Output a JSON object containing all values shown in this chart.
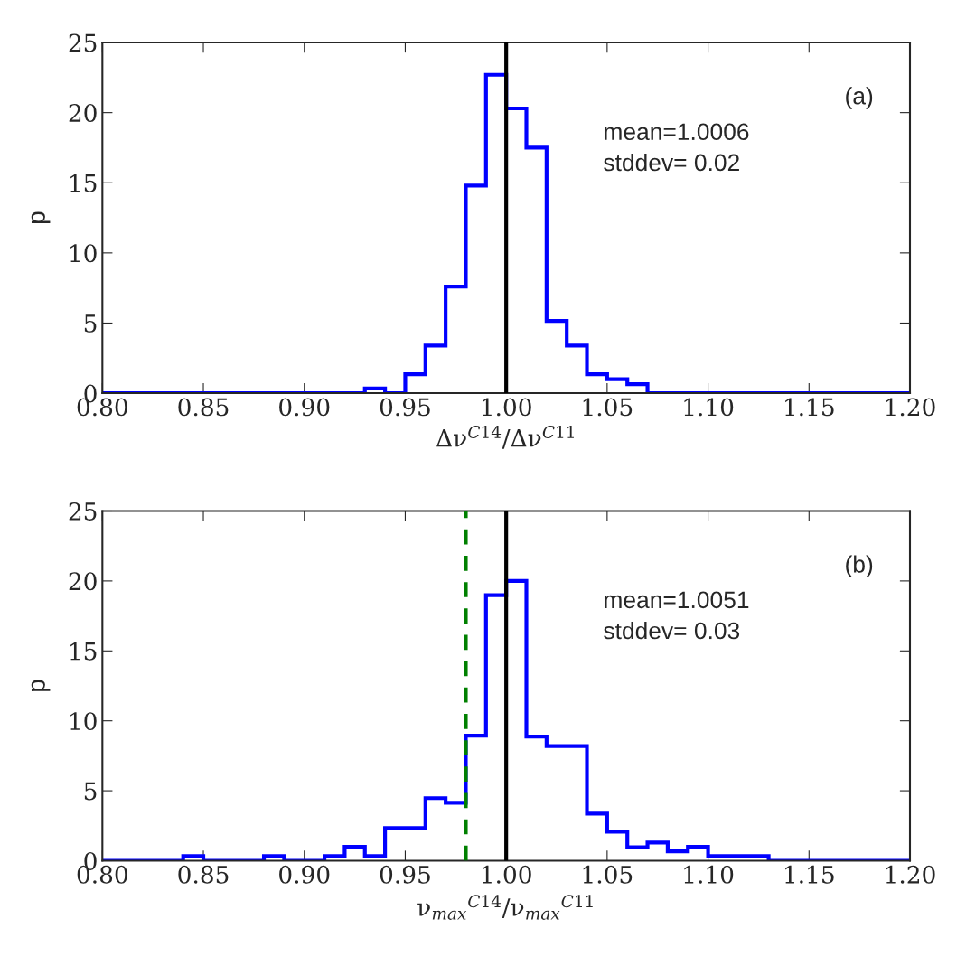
{
  "chart_data": [
    {
      "type": "histogram",
      "xlabel": "Δν$^{C14}$/Δν$^{C11}$",
      "ylabel": "p",
      "annotations": [
        "(a)",
        "mean=1.0006\nstddev= 0.02"
      ],
      "bins": [
        0.8,
        0.81,
        0.82,
        0.83,
        0.84,
        0.85,
        0.86,
        0.87,
        0.88,
        0.89,
        0.9,
        0.91,
        0.92,
        0.93,
        0.94,
        0.95,
        0.96,
        0.97,
        0.98,
        0.99,
        1.0,
        1.01,
        1.02,
        1.03,
        1.04,
        1.05,
        1.06,
        1.07,
        1.08,
        1.09,
        1.1,
        1.11,
        1.12,
        1.13,
        1.14,
        1.15,
        1.16,
        1.17,
        1.18,
        1.19,
        1.2
      ],
      "series": [
        {
          "color": "#0000ff",
          "values": [
            0,
            0,
            0,
            0,
            0,
            0,
            0,
            0,
            0,
            0,
            0,
            0,
            0,
            0.34,
            0,
            1.35,
            3.4,
            7.6,
            14.8,
            22.7,
            20.3,
            17.5,
            5.15,
            3.4,
            1.35,
            1.0,
            0.64,
            0,
            0,
            0,
            0,
            0,
            0,
            0,
            0,
            0,
            0,
            0,
            0,
            0
          ]
        }
      ],
      "ref_lines": [
        {
          "axis": "x",
          "value": 1.0,
          "color": "#000000",
          "line_style": "solid"
        }
      ],
      "xlim": [
        0.8,
        1.2
      ],
      "xticks": [
        {
          "value": 0.8,
          "label": "0.80"
        },
        {
          "value": 0.85,
          "label": "0.85"
        },
        {
          "value": 0.9,
          "label": "0.90"
        },
        {
          "value": 0.95,
          "label": "0.95"
        },
        {
          "value": 1.0,
          "label": "1.00"
        },
        {
          "value": 1.05,
          "label": "1.05"
        },
        {
          "value": 1.1,
          "label": "1.10"
        },
        {
          "value": 1.15,
          "label": "1.15"
        },
        {
          "value": 1.2,
          "label": "1.20"
        }
      ],
      "ylim": [
        0,
        25
      ],
      "yticks": [
        0,
        5,
        10,
        15,
        20,
        25
      ],
      "grid": false,
      "legend": false
    },
    {
      "type": "histogram",
      "xlabel": "ν$_{max}$$^{C14}$/ν$_{max}$$^{C11}$",
      "ylabel": "p",
      "annotations": [
        "(b)",
        "mean=1.0051\nstddev= 0.03"
      ],
      "bins": [
        0.8,
        0.81,
        0.82,
        0.83,
        0.84,
        0.85,
        0.86,
        0.87,
        0.88,
        0.89,
        0.9,
        0.91,
        0.92,
        0.93,
        0.94,
        0.95,
        0.96,
        0.97,
        0.98,
        0.99,
        1.0,
        1.01,
        1.02,
        1.03,
        1.04,
        1.05,
        1.06,
        1.07,
        1.08,
        1.09,
        1.1,
        1.11,
        1.12,
        1.13,
        1.14,
        1.15,
        1.16,
        1.17,
        1.18,
        1.19,
        1.2
      ],
      "series": [
        {
          "color": "#0000ff",
          "values": [
            0,
            0,
            0,
            0,
            0.33,
            0,
            0,
            0,
            0.33,
            0,
            0,
            0.33,
            1.0,
            0.33,
            2.33,
            2.33,
            4.47,
            4.14,
            8.94,
            18.98,
            20.0,
            8.87,
            8.2,
            8.2,
            3.37,
            2.07,
            0.97,
            1.3,
            0.67,
            1.0,
            0.33,
            0.33,
            0.33,
            0,
            0,
            0,
            0,
            0,
            0,
            0
          ]
        }
      ],
      "ref_lines": [
        {
          "axis": "x",
          "value": 1.0,
          "color": "#000000",
          "line_style": "solid"
        },
        {
          "axis": "x",
          "value": 0.98,
          "color": "#008000",
          "line_style": "dashed"
        }
      ],
      "xlim": [
        0.8,
        1.2
      ],
      "xticks": [
        {
          "value": 0.8,
          "label": "0.80"
        },
        {
          "value": 0.85,
          "label": "0.85"
        },
        {
          "value": 0.9,
          "label": "0.90"
        },
        {
          "value": 0.95,
          "label": "0.95"
        },
        {
          "value": 1.0,
          "label": "1.00"
        },
        {
          "value": 1.05,
          "label": "1.05"
        },
        {
          "value": 1.1,
          "label": "1.10"
        },
        {
          "value": 1.15,
          "label": "1.15"
        },
        {
          "value": 1.2,
          "label": "1.20"
        }
      ],
      "ylim": [
        0,
        25
      ],
      "yticks": [
        0,
        5,
        10,
        15,
        20,
        25
      ],
      "grid": false,
      "legend": false
    }
  ]
}
